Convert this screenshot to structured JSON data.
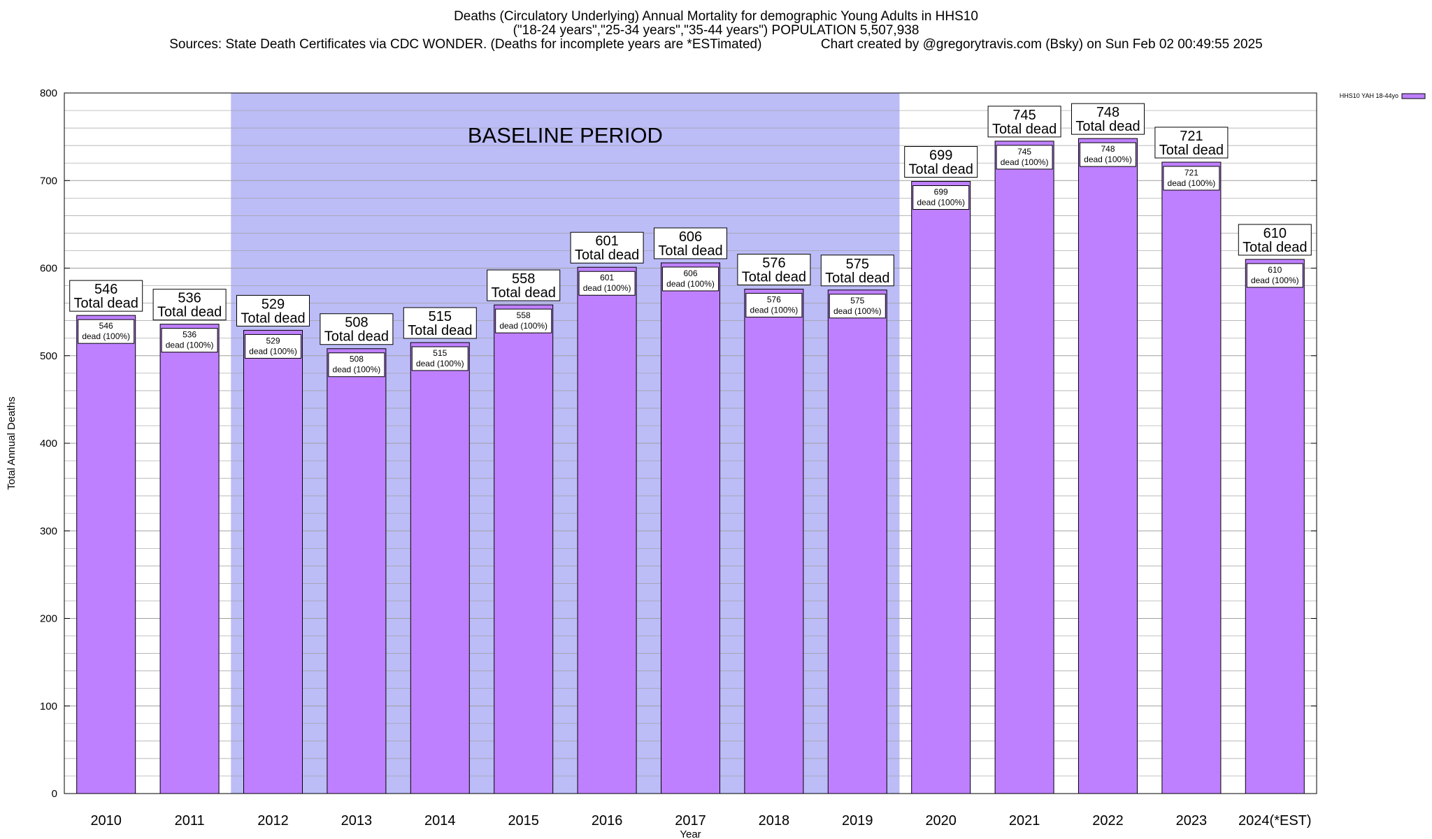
{
  "header": {
    "title_line1": "Deaths (Circulatory Underlying) Annual Mortality for demographic Young Adults in HHS10",
    "title_line2": "(\"18-24 years\",\"25-34 years\",\"35-44 years\") POPULATION 5,507,938",
    "sources": "Sources: State Death Certificates via CDC WONDER. (Deaths for incomplete years are *ESTimated)",
    "credit": "Chart created by @gregorytravis.com (Bsky) on Sun Feb 02 00:49:55 2025"
  },
  "colors": {
    "bar": "#bf80ff",
    "baseline_band": "#bcbcf7",
    "grid": "#a0a0a0"
  },
  "chart_data": {
    "type": "bar",
    "xlabel": "Year",
    "ylabel": "Total Annual Deaths",
    "ylim": [
      0,
      800
    ],
    "yticks": [
      0,
      100,
      200,
      300,
      400,
      500,
      600,
      700,
      800
    ],
    "grid": true,
    "legend": {
      "position": "top-right",
      "entries": [
        "HHS10 YAH 18-44yo"
      ]
    },
    "categories": [
      "2010",
      "2011",
      "2012",
      "2013",
      "2014",
      "2015",
      "2016",
      "2017",
      "2018",
      "2019",
      "2020",
      "2021",
      "2022",
      "2023",
      "2024(*EST)"
    ],
    "series": [
      {
        "name": "HHS10 YAH 18-44yo",
        "values": [
          546,
          536,
          529,
          508,
          515,
          558,
          601,
          606,
          576,
          575,
          699,
          745,
          748,
          721,
          610
        ]
      }
    ],
    "top_label_suffix": "Total dead",
    "inner_label_suffix": "dead (100%)",
    "annotation": {
      "text": "BASELINE PERIOD",
      "from": "2012",
      "to": "2019"
    }
  }
}
